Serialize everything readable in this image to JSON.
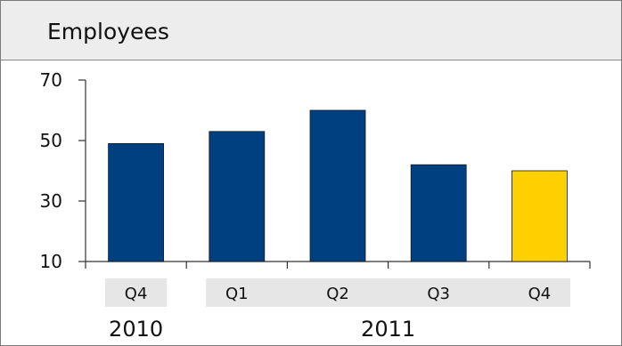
{
  "title": "Employees",
  "colors": {
    "bar": "#003f80",
    "highlight": "#ffd000",
    "category_box": "#e6e6e6",
    "axis": "#333333"
  },
  "chart_data": {
    "type": "bar",
    "title": "Employees",
    "xlabel": "",
    "ylabel": "",
    "ylim": [
      10,
      70
    ],
    "yticks": [
      10,
      30,
      50,
      70
    ],
    "grid": false,
    "categories": [
      "Q4",
      "Q1",
      "Q2",
      "Q3",
      "Q4"
    ],
    "groups": [
      {
        "label": "2010",
        "categories": [
          "Q4"
        ]
      },
      {
        "label": "2011",
        "categories": [
          "Q1",
          "Q2",
          "Q3",
          "Q4"
        ]
      }
    ],
    "series": [
      {
        "values": [
          49,
          53,
          60,
          42,
          40
        ]
      }
    ],
    "highlight_index": 4
  }
}
